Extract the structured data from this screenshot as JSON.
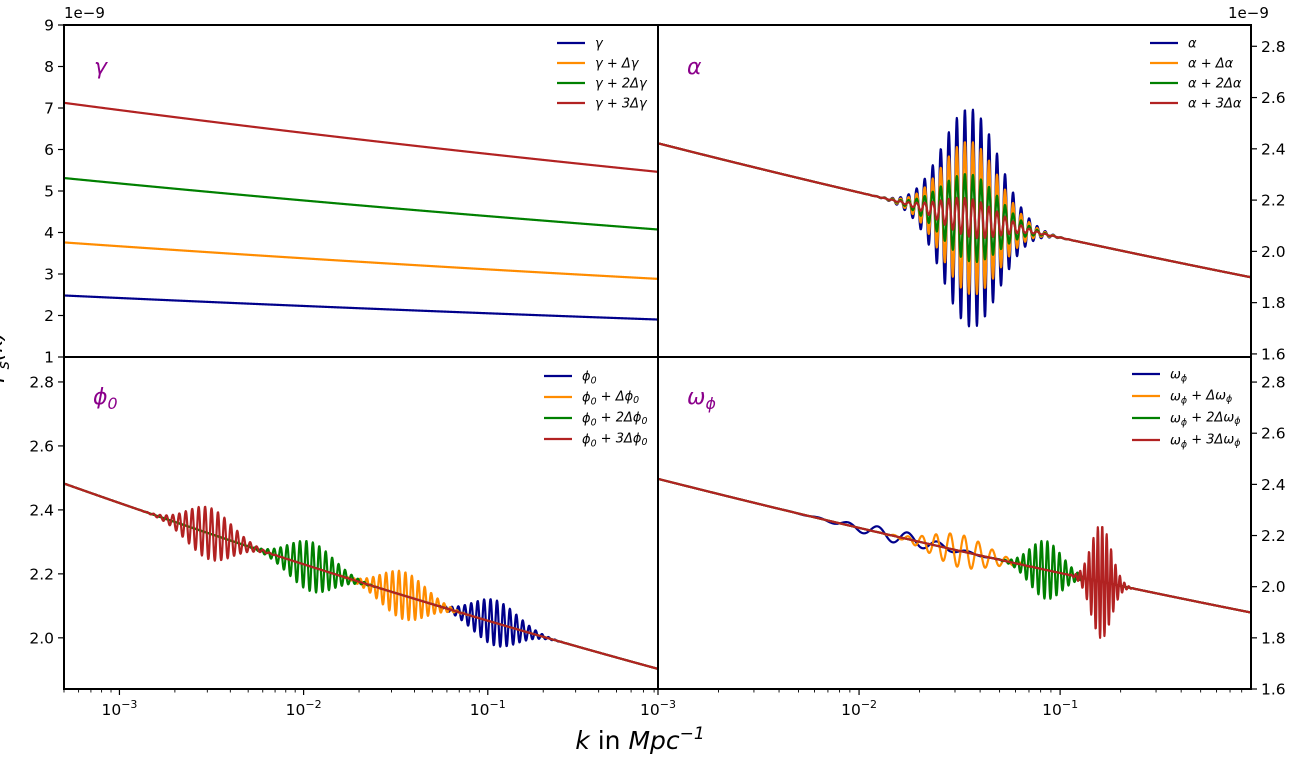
{
  "chart_data": {
    "type": "line",
    "xlabel": "k in Mpc^-1",
    "ylabel": "P_s(k)",
    "x_scale": "log",
    "x_tick_labels": [
      "10^-3",
      "10^-2",
      "10^-1"
    ],
    "y_offset_label": "1e−9",
    "base_spectrum": {
      "amplitude_at_0.01": 2.23,
      "tilt": -0.0358
    },
    "panels": [
      {
        "id": "gamma",
        "label": "γ",
        "xlim": [
          0.0005,
          0.84
        ],
        "ylim": [
          1,
          9
        ],
        "yticks": [
          1,
          2,
          3,
          4,
          5,
          6,
          7,
          8,
          9
        ],
        "ytick_format": 0,
        "yaxis_side": "left",
        "offset_label": true,
        "series": [
          {
            "name": "γ",
            "color": "#00008B",
            "scale": 1.0
          },
          {
            "name": "γ + Δγ",
            "color": "#FF8C00",
            "scale": 1.515
          },
          {
            "name": "γ + 2Δγ",
            "color": "#008000",
            "scale": 2.14
          },
          {
            "name": "γ + 3Δγ",
            "color": "#B22222",
            "scale": 2.87
          }
        ]
      },
      {
        "id": "alpha",
        "label": "α",
        "xlim": [
          0.001,
          0.89
        ],
        "ylim": [
          1.588,
          2.883
        ],
        "yticks": [
          1.6,
          1.8,
          2.0,
          2.2,
          2.4,
          2.6,
          2.8
        ],
        "ytick_format": 1,
        "yaxis_side": "right",
        "offset_label": true,
        "series": [
          {
            "name": "α",
            "color": "#00008B",
            "osc": {
              "kc": 0.036,
              "amp": 0.2,
              "sigma_dec": 0.14,
              "period_dec": 0.04
            }
          },
          {
            "name": "α + Δα",
            "color": "#FF8C00",
            "osc": {
              "kc": 0.036,
              "amp": 0.14,
              "sigma_dec": 0.14,
              "period_dec": 0.04
            }
          },
          {
            "name": "α + 2Δα",
            "color": "#008000",
            "osc": {
              "kc": 0.036,
              "amp": 0.08,
              "sigma_dec": 0.14,
              "period_dec": 0.04
            }
          },
          {
            "name": "α + 3Δα",
            "color": "#B22222",
            "osc": {
              "kc": 0.036,
              "amp": 0.035,
              "sigma_dec": 0.14,
              "period_dec": 0.04
            }
          }
        ]
      },
      {
        "id": "phi0",
        "label": "ϕ_0",
        "xlim": [
          0.0005,
          0.84
        ],
        "ylim": [
          1.84,
          2.878
        ],
        "yticks": [
          2.0,
          2.2,
          2.4,
          2.6,
          2.8
        ],
        "ytick_format": 1,
        "yaxis_side": "left",
        "offset_label": false,
        "series": [
          {
            "name": "ϕ_0",
            "color": "#00008B",
            "osc": {
              "kc": 0.11,
              "amp": 0.035,
              "sigma_dec": 0.12,
              "period_dec": 0.035
            }
          },
          {
            "name": "ϕ_0 + Δϕ_0",
            "color": "#FF8C00",
            "osc": {
              "kc": 0.035,
              "amp": 0.035,
              "sigma_dec": 0.12,
              "period_dec": 0.035
            }
          },
          {
            "name": "ϕ_0 + 2Δϕ_0",
            "color": "#008000",
            "osc": {
              "kc": 0.011,
              "amp": 0.035,
              "sigma_dec": 0.12,
              "period_dec": 0.035
            }
          },
          {
            "name": "ϕ_0 + 3Δϕ_0",
            "color": "#B22222",
            "osc": {
              "kc": 0.0031,
              "amp": 0.035,
              "sigma_dec": 0.12,
              "period_dec": 0.035
            }
          }
        ]
      },
      {
        "id": "omega",
        "label": "ω_ϕ",
        "xlim": [
          0.001,
          0.89
        ],
        "ylim": [
          1.6,
          2.898
        ],
        "yticks": [
          1.6,
          1.8,
          2.0,
          2.2,
          2.4,
          2.6,
          2.8
        ],
        "ytick_format": 1,
        "yaxis_side": "right",
        "offset_label": false,
        "series": [
          {
            "name": "ω_ϕ",
            "color": "#00008B",
            "osc": {
              "kc": 0.016,
              "amp": 0.012,
              "sigma_dec": 0.2,
              "period_dec": 0.15
            }
          },
          {
            "name": "ω_ϕ + Δω_ϕ",
            "color": "#FF8C00",
            "osc": {
              "kc": 0.032,
              "amp": 0.03,
              "sigma_dec": 0.14,
              "period_dec": 0.07
            }
          },
          {
            "name": "ω_ϕ + 2Δω_ϕ",
            "color": "#008000",
            "osc": {
              "kc": 0.085,
              "amp": 0.055,
              "sigma_dec": 0.08,
              "period_dec": 0.03
            }
          },
          {
            "name": "ω_ϕ + 3Δω_ϕ",
            "color": "#B22222",
            "osc": {
              "kc": 0.16,
              "amp": 0.11,
              "sigma_dec": 0.05,
              "period_dec": 0.022
            }
          }
        ]
      }
    ],
    "label_color": "#8B008B"
  }
}
